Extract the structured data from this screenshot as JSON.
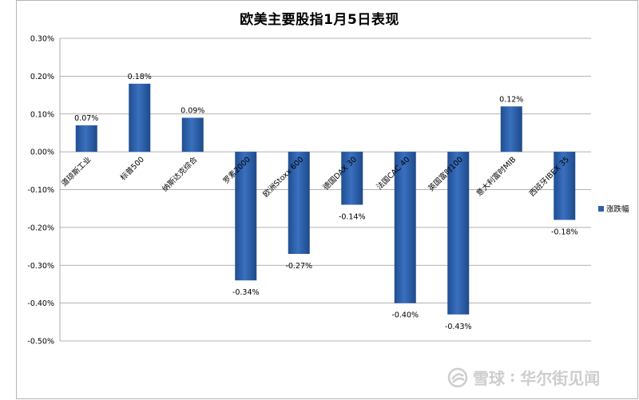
{
  "chart_data": {
    "type": "bar",
    "title": "欧美主要股指1月5日表现",
    "categories": [
      "道琼斯工业",
      "标普500",
      "纳斯达克综合",
      "罗素2000",
      "欧洲Stoxx 600",
      "德国DAX 30",
      "法国CAC 40",
      "英国富时100",
      "意大利富时MIB",
      "西班牙IBEX 35"
    ],
    "series": [
      {
        "name": "涨跌幅",
        "values": [
          0.07,
          0.18,
          0.09,
          -0.34,
          -0.27,
          -0.14,
          -0.4,
          -0.43,
          0.12,
          -0.18
        ],
        "labels": [
          "0.07%",
          "0.18%",
          "0.09%",
          "-0.34%",
          "-0.27%",
          "-0.14%",
          "-0.40%",
          "-0.43%",
          "0.12%",
          "-0.18%"
        ]
      }
    ],
    "ylim": [
      -0.5,
      0.3
    ],
    "yticks": [
      0.3,
      0.2,
      0.1,
      0.0,
      -0.1,
      -0.2,
      -0.3,
      -0.4,
      -0.5
    ],
    "ytick_labels": [
      "0.30%",
      "0.20%",
      "0.10%",
      "0.00%",
      "-0.10%",
      "-0.20%",
      "-0.30%",
      "-0.40%",
      "-0.50%"
    ],
    "grid": true,
    "legend_position": "right",
    "bar_color": "#2e5fa8"
  },
  "watermark": {
    "brand1": "雪球",
    "separator": ":",
    "brand2": "华尔街见闻"
  }
}
